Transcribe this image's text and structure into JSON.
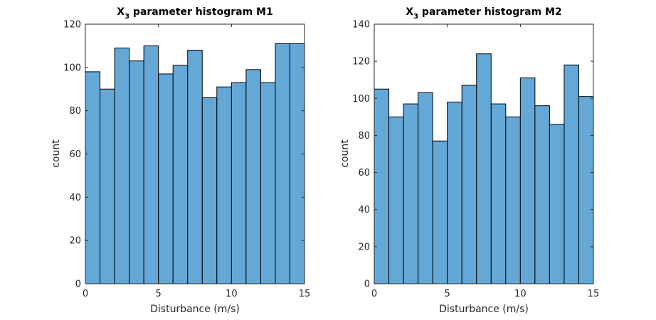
{
  "chart_data": [
    {
      "type": "bar",
      "title_main": "X",
      "title_sub": "3",
      "title_rest": " parameter histogram M1",
      "xlabel": "Disturbance (m/s)",
      "ylabel": "count",
      "xlim": [
        0,
        15
      ],
      "ylim": [
        0,
        120
      ],
      "xticks": [
        0,
        5,
        10,
        15
      ],
      "yticks": [
        0,
        20,
        40,
        60,
        80,
        100,
        120
      ],
      "bin_edges": [
        0,
        1,
        2,
        3,
        4,
        5,
        6,
        7,
        8,
        9,
        10,
        11,
        12,
        13,
        14,
        15
      ],
      "values": [
        98,
        90,
        109,
        103,
        110,
        97,
        101,
        108,
        86,
        91,
        93,
        99,
        93,
        111,
        111
      ],
      "bar_color": "#64a8d8"
    },
    {
      "type": "bar",
      "title_main": "X",
      "title_sub": "3",
      "title_rest": " parameter histogram M2",
      "xlabel": "Disturbance (m/s)",
      "ylabel": "count",
      "xlim": [
        0,
        15
      ],
      "ylim": [
        0,
        140
      ],
      "xticks": [
        0,
        5,
        10,
        15
      ],
      "yticks": [
        0,
        20,
        40,
        60,
        80,
        100,
        120,
        140
      ],
      "bin_edges": [
        0,
        1,
        2,
        3,
        4,
        5,
        6,
        7,
        8,
        9,
        10,
        11,
        12,
        13,
        14,
        15
      ],
      "values": [
        105,
        90,
        97,
        103,
        77,
        98,
        107,
        124,
        97,
        90,
        111,
        96,
        86,
        118,
        101
      ],
      "bar_color": "#64a8d8"
    }
  ]
}
